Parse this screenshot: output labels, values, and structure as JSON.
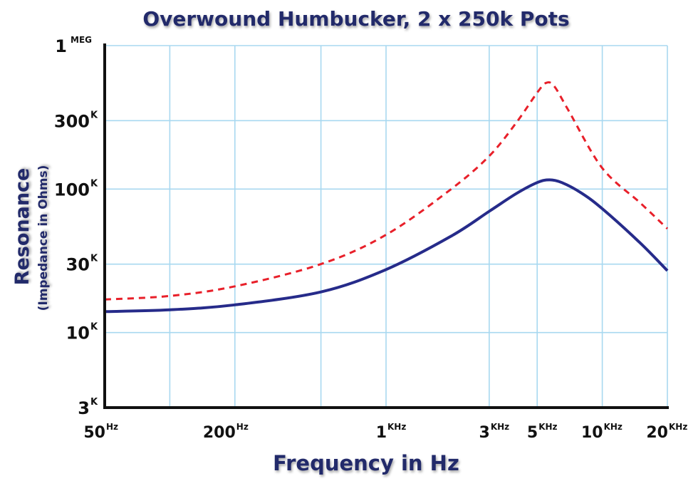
{
  "chart_data": {
    "type": "line",
    "title": "Overwound Humbucker, 2 x 250k Pots",
    "xlabel": "Frequency in Hz",
    "ylabel": "Resonance",
    "ylabel_sub": "(Impedance in Ohms)",
    "x_scale": "log",
    "y_scale": "log",
    "xlim": [
      50,
      20000
    ],
    "ylim": [
      3000,
      1000000
    ],
    "grid": true,
    "x_ticks": [
      {
        "value": 50,
        "main": "50",
        "sup": "Hz"
      },
      {
        "value": 200,
        "main": "200",
        "sup": "Hz"
      },
      {
        "value": 1000,
        "main": "1",
        "sup": "KHz"
      },
      {
        "value": 3000,
        "main": "3",
        "sup": "KHz"
      },
      {
        "value": 5000,
        "main": "5",
        "sup": "KHz"
      },
      {
        "value": 10000,
        "main": "10",
        "sup": "KHz"
      },
      {
        "value": 20000,
        "main": "20",
        "sup": "KHz"
      }
    ],
    "x_gridlines": [
      50,
      100,
      200,
      500,
      1000,
      3000,
      5000,
      10000,
      20000
    ],
    "y_ticks": [
      {
        "value": 1000000,
        "main": "1",
        "sup": "MEG"
      },
      {
        "value": 300000,
        "main": "300",
        "sup": "K"
      },
      {
        "value": 100000,
        "main": "100",
        "sup": "K"
      },
      {
        "value": 30000,
        "main": "30",
        "sup": "K"
      },
      {
        "value": 10000,
        "main": "10",
        "sup": "K"
      },
      {
        "value": 3000,
        "main": "3",
        "sup": "K"
      }
    ],
    "y_gridlines": [
      1000000,
      300000,
      100000,
      30000,
      10000,
      3000
    ],
    "series": [
      {
        "style": "dashed",
        "color": "#e8202a",
        "x": [
          50,
          100,
          200,
          500,
          1000,
          2000,
          3000,
          4000,
          5000,
          5500,
          6000,
          7000,
          10000,
          15000,
          20000
        ],
        "y": [
          17000,
          18000,
          21000,
          30000,
          48000,
          100000,
          170000,
          290000,
          470000,
          550000,
          520000,
          350000,
          140000,
          80000,
          53000
        ]
      },
      {
        "style": "solid",
        "color": "#262b8a",
        "x": [
          50,
          100,
          200,
          500,
          1000,
          2000,
          3000,
          4000,
          5000,
          5700,
          6500,
          8000,
          10000,
          15000,
          20000
        ],
        "y": [
          14000,
          14400,
          15600,
          19200,
          27500,
          47000,
          70000,
          93000,
          111000,
          116000,
          111000,
          94000,
          73000,
          42000,
          27000
        ]
      }
    ]
  }
}
